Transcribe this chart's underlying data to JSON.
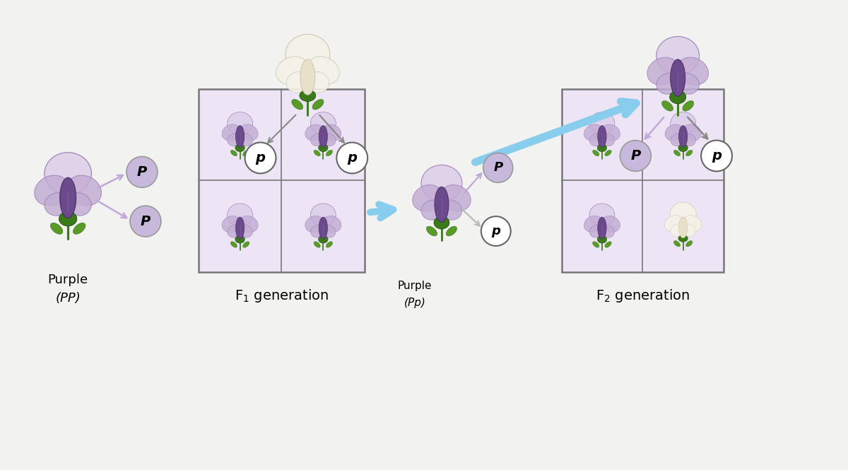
{
  "bg_color": "#f2f2f0",
  "purple_light": "#c4aed4",
  "purple_mid": "#9b7bb8",
  "purple_dark": "#6a4a8a",
  "purple_pale": "#ddd0ea",
  "white_petal": "#f5f2e8",
  "white_dark": "#ccc8b0",
  "cream_mid": "#e8e0c8",
  "green_dark": "#3a7a18",
  "green_mid": "#5a9a28",
  "green_light": "#90b840",
  "purple_circle_fill": "#c8b8dc",
  "white_circle_fill": "#ffffff",
  "circle_edge": "#888888",
  "blue_arrow": "#88ccee",
  "purple_arrow": "#c0a8d8",
  "gray_arrow": "#aaaaaa",
  "grid_fill": "#e8dff0",
  "grid_edge": "#777777",
  "cell_bg": "#ede5f5",
  "f1_label": "F$_1$ generation",
  "f2_label": "F$_2$ generation",
  "parent_line1": "Purple",
  "parent_line2": "(PP)",
  "pp_line1": "Purple",
  "pp_line2": "(Pp)"
}
